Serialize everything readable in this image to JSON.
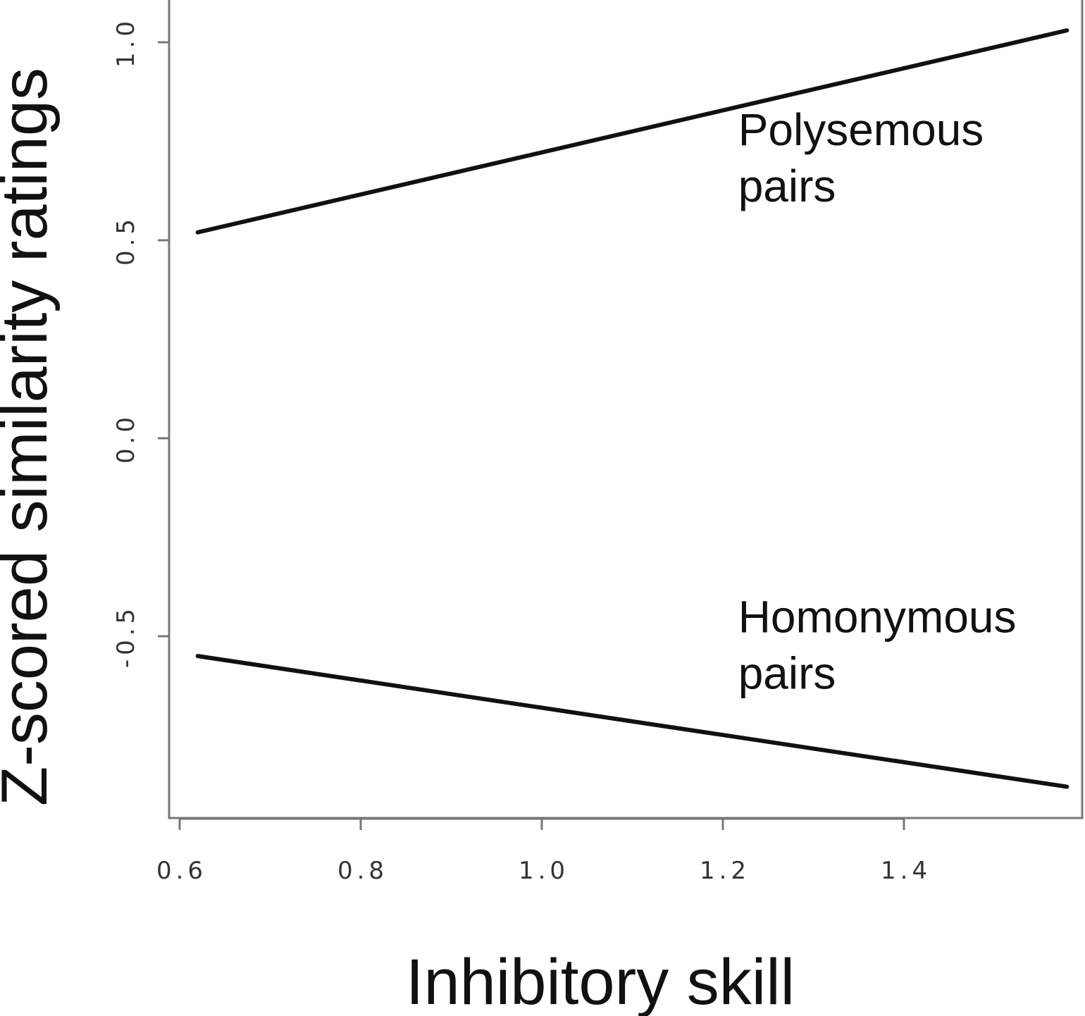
{
  "chart_data": {
    "type": "line",
    "title": "",
    "xlabel": "Inhibitory skill",
    "ylabel": "Z-scored similarity ratings",
    "xlim": [
      0.6,
      1.6
    ],
    "ylim": [
      -1.0,
      1.1
    ],
    "x_ticks": [
      0.6,
      0.8,
      1.0,
      1.2,
      1.4
    ],
    "x_tick_labels": [
      "0.6",
      "0.8",
      "1.0",
      "1.2",
      "1.4"
    ],
    "y_ticks": [
      1.0,
      0.5,
      0.0,
      -0.5
    ],
    "y_tick_labels": [
      "1.0",
      "0.5",
      "0.0",
      "-0.5"
    ],
    "grid": false,
    "legend": "none",
    "series": [
      {
        "name": "Polysemous pairs",
        "x": [
          0.62,
          1.58
        ],
        "y": [
          0.52,
          1.03
        ],
        "color": "#111111"
      },
      {
        "name": "Homonymous pairs",
        "x": [
          0.62,
          1.58
        ],
        "y": [
          -0.55,
          -0.88
        ],
        "color": "#111111"
      }
    ],
    "annotations": [
      {
        "lines": [
          "Polysemous",
          "pairs"
        ],
        "x": 1.22,
        "y": 0.74
      },
      {
        "lines": [
          "Homonymous",
          "pairs"
        ],
        "x": 1.22,
        "y": -0.49
      }
    ]
  }
}
